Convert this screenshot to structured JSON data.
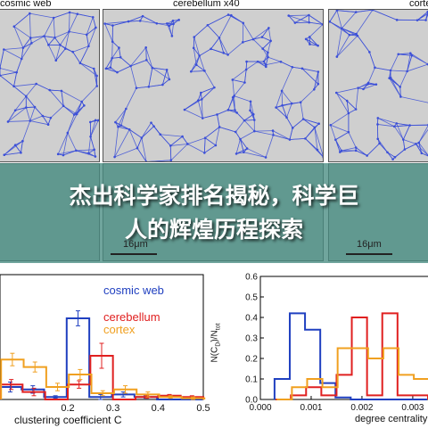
{
  "panels": [
    {
      "title": "cosmic web"
    },
    {
      "title": "cerebellum x40"
    },
    {
      "title": "cortex"
    }
  ],
  "scale_label": "16μm",
  "banner": {
    "line1": "杰出科学家排名揭秘，科学巨",
    "line2": "人的辉煌历程探索"
  },
  "colors": {
    "cosmic_web": "#2040c0",
    "cerebellum": "#e02020",
    "cortex": "#f0a020",
    "network": "#3b4fd8"
  },
  "chart_data": [
    {
      "type": "bar",
      "xlabel": "clustering coefficient C",
      "xlim": [
        0.05,
        0.5
      ],
      "x_ticks": [
        "0.2",
        "0.3",
        "0.4",
        "0.5"
      ],
      "bin_edges": [
        0.05,
        0.1,
        0.15,
        0.2,
        0.25,
        0.3,
        0.35,
        0.4,
        0.45,
        0.5
      ],
      "ylim": [
        0,
        1
      ],
      "legend": [
        "cosmic web",
        "cerebellum",
        "cortex"
      ],
      "series": [
        {
          "name": "cosmic web",
          "values": [
            0.1,
            0.08,
            0.02,
            0.65,
            0.02,
            0.04,
            0.02,
            0.0,
            0.0
          ],
          "errors": [
            0.04,
            0.03,
            0.01,
            0.06,
            0.02,
            0.02,
            0.01,
            0.0,
            0.0
          ]
        },
        {
          "name": "cerebellum",
          "values": [
            0.12,
            0.06,
            0.0,
            0.12,
            0.35,
            0.0,
            0.02,
            0.03,
            0.02
          ],
          "errors": [
            0.04,
            0.03,
            0.0,
            0.03,
            0.1,
            0.0,
            0.01,
            0.01,
            0.01
          ]
        },
        {
          "name": "cortex",
          "values": [
            0.32,
            0.26,
            0.1,
            0.2,
            0.05,
            0.08,
            0.04,
            0.02,
            0.01
          ],
          "errors": [
            0.05,
            0.04,
            0.03,
            0.04,
            0.02,
            0.03,
            0.02,
            0.01,
            0.01
          ]
        }
      ]
    },
    {
      "type": "bar",
      "xlabel": "degree centrality",
      "ylabel": "N(C",
      "ylabel_sub": "D",
      "ylabel_mid": ")/N",
      "ylabel_sub2": "tot",
      "xlim": [
        0,
        0.0033
      ],
      "x_ticks": [
        "0.000",
        "0.001",
        "0.002",
        "0.003"
      ],
      "ylim": [
        0,
        0.6
      ],
      "y_ticks": [
        "0.0",
        "0.1",
        "0.2",
        "0.3",
        "0.4",
        "0.5",
        "0.6"
      ],
      "bin_edges": [
        0.0003,
        0.0006,
        0.0009,
        0.0012,
        0.0015,
        0.0018,
        0.0021,
        0.0024,
        0.0027,
        0.003,
        0.0033
      ],
      "series": [
        {
          "name": "cosmic web",
          "values": [
            0.1,
            0.42,
            0.34,
            0.08,
            0.01,
            0.0,
            0.0,
            0.0,
            0.0,
            0.0
          ]
        },
        {
          "name": "cerebellum",
          "values": [
            0.0,
            0.02,
            0.06,
            0.02,
            0.12,
            0.4,
            0.02,
            0.42,
            0.02,
            0.02
          ]
        },
        {
          "name": "cortex",
          "values": [
            0.0,
            0.06,
            0.1,
            0.06,
            0.25,
            0.25,
            0.2,
            0.25,
            0.12,
            0.1
          ]
        }
      ]
    }
  ]
}
